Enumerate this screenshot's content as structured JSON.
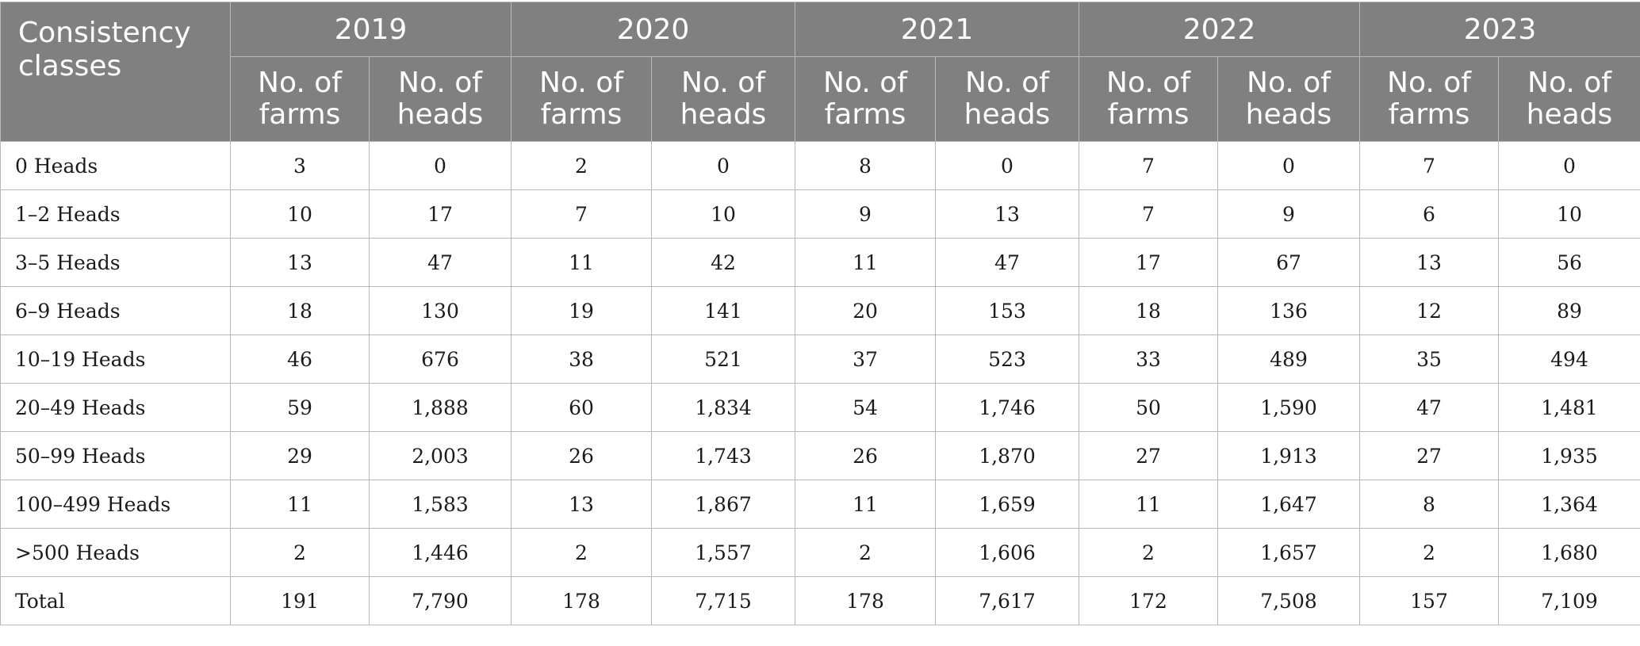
{
  "table": {
    "corner_header": "Consistency classes",
    "years": [
      "2019",
      "2020",
      "2021",
      "2022",
      "2023"
    ],
    "sub_headers": [
      "No. of farms",
      "No. of heads"
    ],
    "rows": [
      {
        "label": "0 Heads",
        "values": [
          "3",
          "0",
          "2",
          "0",
          "8",
          "0",
          "7",
          "0",
          "7",
          "0"
        ]
      },
      {
        "label": "1–2 Heads",
        "values": [
          "10",
          "17",
          "7",
          "10",
          "9",
          "13",
          "7",
          "9",
          "6",
          "10"
        ]
      },
      {
        "label": "3–5 Heads",
        "values": [
          "13",
          "47",
          "11",
          "42",
          "11",
          "47",
          "17",
          "67",
          "13",
          "56"
        ]
      },
      {
        "label": "6–9 Heads",
        "values": [
          "18",
          "130",
          "19",
          "141",
          "20",
          "153",
          "18",
          "136",
          "12",
          "89"
        ]
      },
      {
        "label": "10–19 Heads",
        "values": [
          "46",
          "676",
          "38",
          "521",
          "37",
          "523",
          "33",
          "489",
          "35",
          "494"
        ]
      },
      {
        "label": "20–49 Heads",
        "values": [
          "59",
          "1,888",
          "60",
          "1,834",
          "54",
          "1,746",
          "50",
          "1,590",
          "47",
          "1,481"
        ]
      },
      {
        "label": "50–99 Heads",
        "values": [
          "29",
          "2,003",
          "26",
          "1,743",
          "26",
          "1,870",
          "27",
          "1,913",
          "27",
          "1,935"
        ]
      },
      {
        "label": "100–499 Heads",
        "values": [
          "11",
          "1,583",
          "13",
          "1,867",
          "11",
          "1,659",
          "11",
          "1,647",
          "8",
          "1,364"
        ]
      },
      {
        "label": ">500 Heads",
        "values": [
          "2",
          "1,446",
          "2",
          "1,557",
          "2",
          "1,606",
          "2",
          "1,657",
          "2",
          "1,680"
        ]
      },
      {
        "label": "Total",
        "values": [
          "191",
          "7,790",
          "178",
          "7,715",
          "178",
          "7,617",
          "172",
          "7,508",
          "157",
          "7,109"
        ]
      }
    ]
  }
}
